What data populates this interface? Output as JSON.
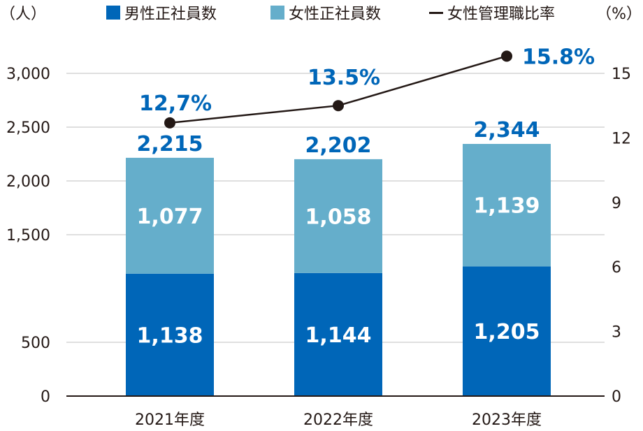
{
  "chart_data": {
    "type": "bar",
    "stacked": true,
    "categories": [
      "2021年度",
      "2022年度",
      "2023年度"
    ],
    "series": [
      {
        "name": "男性正社員数",
        "values": [
          1138,
          1144,
          1205
        ],
        "color": "#0066b8",
        "axis": "left"
      },
      {
        "name": "女性正社員数",
        "values": [
          1077,
          1058,
          1139
        ],
        "color": "#65aecb",
        "axis": "left"
      }
    ],
    "totals": [
      2215,
      2202,
      2344
    ],
    "total_labels": [
      "2,215",
      "2,202",
      "2,344"
    ],
    "segment_labels": {
      "男性正社員数": [
        "1,138",
        "1,144",
        "1,205"
      ],
      "女性正社員数": [
        "1,077",
        "1,058",
        "1,139"
      ]
    },
    "line": {
      "name": "女性管理職比率",
      "values": [
        12.7,
        13.5,
        15.8
      ],
      "labels": [
        "12,7%",
        "13.5%",
        "15.8%"
      ],
      "color": "#231815",
      "axis": "right"
    },
    "left_axis": {
      "unit": "（人）",
      "ticks": [
        0,
        500,
        1500,
        2000,
        2500,
        3000
      ],
      "tick_labels": [
        "0",
        "500",
        "1,500",
        "2,000",
        "2,500",
        "3,000"
      ],
      "ylim": [
        0,
        3000
      ]
    },
    "right_axis": {
      "unit": "（%）",
      "ticks": [
        0,
        3,
        6,
        9,
        12,
        15
      ],
      "tick_labels": [
        "0",
        "3",
        "6",
        "9",
        "12",
        "15"
      ],
      "ylim": [
        0,
        15
      ]
    },
    "legend": {
      "placement": "top",
      "items": [
        {
          "label": "男性正社員数",
          "symbol": "■",
          "color": "#0066b8"
        },
        {
          "label": "女性正社員数",
          "symbol": "■",
          "color": "#65aecb"
        },
        {
          "label": "女性管理職比率",
          "symbol": "ー",
          "color": "#231815"
        }
      ]
    },
    "grid": true,
    "gridline_color": "#cccccc"
  }
}
